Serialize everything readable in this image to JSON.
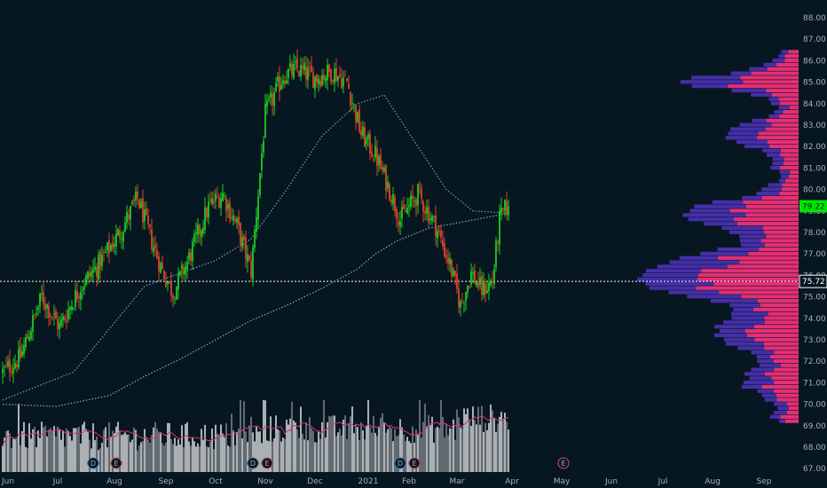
{
  "chart_data": {
    "type": "candlestick",
    "title": "",
    "y_axis": {
      "side": "right",
      "range": [
        66.8,
        88.6
      ],
      "ticks": [
        "88.00",
        "87.00",
        "86.00",
        "85.00",
        "84.00",
        "83.00",
        "82.00",
        "81.00",
        "80.00",
        "79.00",
        "78.00",
        "77.00",
        "76.00",
        "75.00",
        "74.00",
        "73.00",
        "72.00",
        "71.00",
        "70.00",
        "69.00",
        "68.00",
        "67.00"
      ]
    },
    "x_axis": {
      "ticks": [
        "Jun",
        "Jul",
        "Aug",
        "Sep",
        "Oct",
        "Nov",
        "Dec",
        "2021",
        "Feb",
        "Mar",
        "Apr",
        "May",
        "Jun",
        "Jul",
        "Aug",
        "Sep"
      ]
    },
    "current_price": {
      "value": 79.22,
      "label": "79.22",
      "color": "#00e600"
    },
    "highlight_price": {
      "value": 75.72,
      "label": "75.72",
      "line": "dotted"
    },
    "colors": {
      "background": "#061721",
      "up": "#22e022",
      "down": "#f04a2a",
      "ma_fast": "#6fa7ab",
      "ma_slow": "#8aaab0",
      "volume_up": "#f2f2f2",
      "volume_down": "#8a8f96",
      "volume_ma": "#d0357a",
      "profile_up": "#f0307a",
      "profile_down": "#4a2fb0"
    },
    "anchors": [
      [
        0,
        71.5
      ],
      [
        10,
        72.2
      ],
      [
        22,
        75.0
      ],
      [
        32,
        73.6
      ],
      [
        44,
        75.5
      ],
      [
        54,
        76.5
      ],
      [
        66,
        78.0
      ],
      [
        76,
        79.6
      ],
      [
        84,
        77.6
      ],
      [
        90,
        76.2
      ],
      [
        96,
        75.2
      ],
      [
        104,
        76.6
      ],
      [
        116,
        79.2
      ],
      [
        124,
        79.8
      ],
      [
        132,
        78.3
      ],
      [
        140,
        76.2
      ],
      [
        148,
        83.5
      ],
      [
        158,
        85.3
      ],
      [
        166,
        85.6
      ],
      [
        176,
        85.2
      ],
      [
        186,
        85.5
      ],
      [
        194,
        85.0
      ],
      [
        202,
        82.6
      ],
      [
        210,
        81.6
      ],
      [
        218,
        80.0
      ],
      [
        224,
        78.6
      ],
      [
        234,
        79.8
      ],
      [
        244,
        78.3
      ],
      [
        252,
        76.5
      ],
      [
        258,
        74.6
      ],
      [
        264,
        76.1
      ],
      [
        270,
        75.3
      ],
      [
        276,
        75.7
      ],
      [
        280,
        78.6
      ],
      [
        284,
        79.2
      ]
    ],
    "series": [
      {
        "name": "",
        "kind": "price",
        "note": "daily OHLC"
      },
      {
        "name": "",
        "kind": "moving_average_fast"
      },
      {
        "name": "",
        "kind": "moving_average_slow"
      }
    ],
    "ma_fast": [
      [
        0,
        70.2
      ],
      [
        40,
        71.5
      ],
      [
        60,
        73.5
      ],
      [
        80,
        75.5
      ],
      [
        100,
        76.1
      ],
      [
        120,
        76.7
      ],
      [
        140,
        77.7
      ],
      [
        160,
        80.0
      ],
      [
        180,
        82.5
      ],
      [
        200,
        84.0
      ],
      [
        215,
        84.4
      ],
      [
        230,
        82.5
      ],
      [
        250,
        80.0
      ],
      [
        265,
        79.0
      ],
      [
        285,
        78.9
      ]
    ],
    "ma_slow": [
      [
        0,
        70.0
      ],
      [
        30,
        69.9
      ],
      [
        60,
        70.4
      ],
      [
        80,
        71.3
      ],
      [
        100,
        72.1
      ],
      [
        120,
        73.0
      ],
      [
        140,
        73.9
      ],
      [
        160,
        74.6
      ],
      [
        180,
        75.4
      ],
      [
        200,
        76.3
      ],
      [
        210,
        77.0
      ],
      [
        222,
        77.6
      ],
      [
        240,
        78.2
      ],
      [
        260,
        78.5
      ],
      [
        285,
        78.9
      ]
    ],
    "volume": {
      "range": [
        0,
        100
      ]
    },
    "events": [
      {
        "label": "D",
        "bar": 51,
        "color": "#2e6ea8"
      },
      {
        "label": "E",
        "bar": 64,
        "color": "#d94a57"
      },
      {
        "label": "D",
        "bar": 141,
        "color": "#2e6ea8"
      },
      {
        "label": "E",
        "bar": 149,
        "color": "#d94a57"
      },
      {
        "label": "D",
        "bar": 224,
        "color": "#2e6ea8"
      },
      {
        "label": "E",
        "bar": 232,
        "color": "#d94a57"
      },
      {
        "label": "E",
        "bar": 316,
        "color": "#d94a57"
      }
    ],
    "volume_profile_range": [
      69.2,
      86.6
    ]
  }
}
